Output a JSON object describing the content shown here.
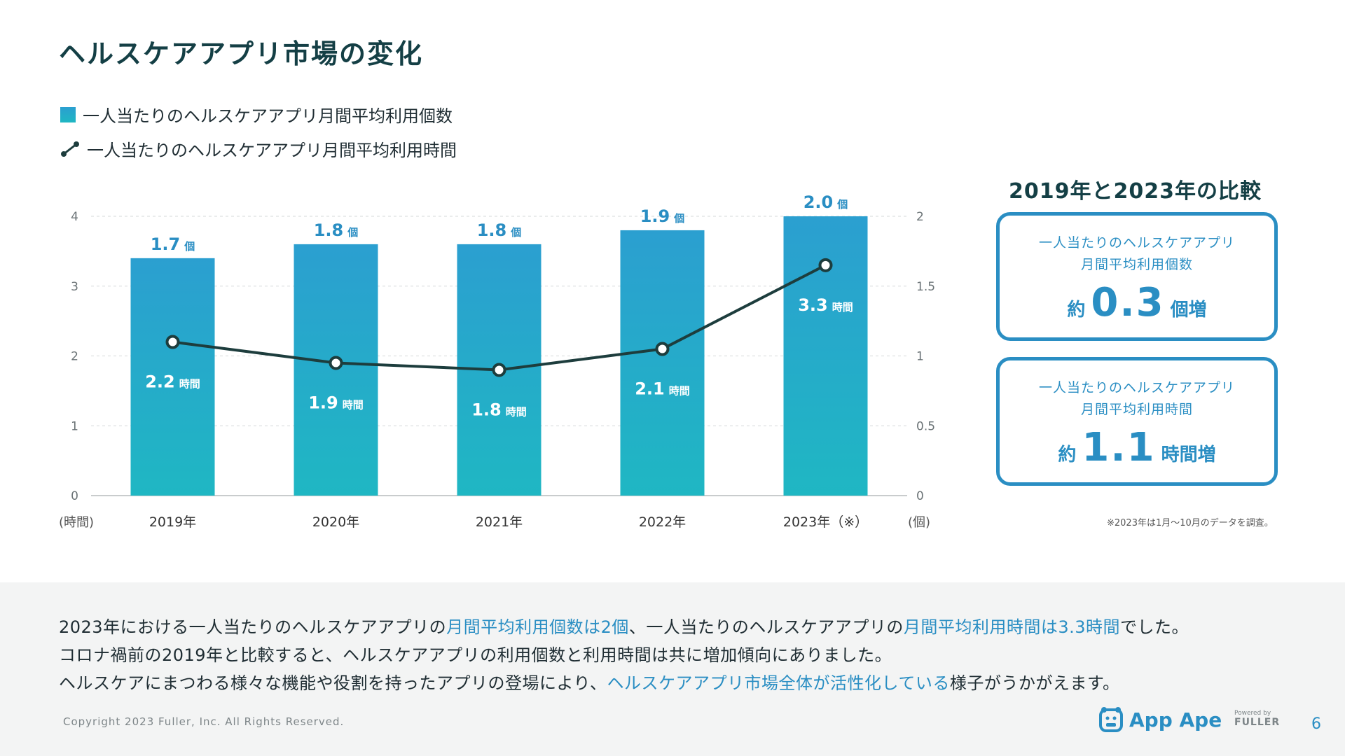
{
  "title": "ヘルスケアアプリ市場の変化",
  "legend": {
    "bar_label": "一人当たりのヘルスケアアプリ月間平均利用個数",
    "line_label": "一人当たりのヘルスケアアプリ月間平均利用時間"
  },
  "colors": {
    "accent": "#2a8ec3",
    "bar_top": "#2b9fd0",
    "bar_bottom": "#1fb7c3",
    "line": "#1d3d3d"
  },
  "chart_data": {
    "type": "bar",
    "categories": [
      "2019年",
      "2020年",
      "2021年",
      "2022年",
      "2023年（※）"
    ],
    "series": [
      {
        "name": "一人当たりのヘルスケアアプリ月間平均利用個数",
        "type": "bar",
        "axis": "right",
        "unit": "個",
        "values": [
          1.7,
          1.8,
          1.8,
          1.9,
          2.0
        ],
        "labels": [
          "1.7",
          "1.8",
          "1.8",
          "1.9",
          "2.0"
        ]
      },
      {
        "name": "一人当たりのヘルスケアアプリ月間平均利用時間",
        "type": "line",
        "axis": "left",
        "unit": "時間",
        "values": [
          2.2,
          1.9,
          1.8,
          2.1,
          3.3
        ],
        "labels": [
          "2.2",
          "1.9",
          "1.8",
          "2.1",
          "3.3"
        ]
      }
    ],
    "left_axis": {
      "label": "(時間)",
      "range": [
        0,
        4
      ],
      "ticks": [
        "0",
        "1",
        "2",
        "3",
        "4"
      ]
    },
    "right_axis": {
      "label": "(個)",
      "range": [
        0,
        2
      ],
      "ticks": [
        "0",
        "0.5",
        "1",
        "1.5",
        "2"
      ]
    }
  },
  "comparison": {
    "title": "2019年と2023年の比較",
    "cards": [
      {
        "label_line1": "一人当たりのヘルスケアアプリ",
        "label_line2": "月間平均利用個数",
        "prefix": "約",
        "value": "0.3",
        "suffix": "個増"
      },
      {
        "label_line1": "一人当たりのヘルスケアアプリ",
        "label_line2": "月間平均利用時間",
        "prefix": "約",
        "value": "1.1",
        "suffix": "時間増"
      }
    ],
    "footnote": "※2023年は1月〜10月のデータを調査。"
  },
  "summary": {
    "line1_a": "2023年における一人当たりのヘルスケアアプリの",
    "line1_b": "月間平均利用個数は2個",
    "line1_c": "、一人当たりのヘルスケアアプリの",
    "line1_d": "月間平均利用時間は3.3時間",
    "line1_e": "でした。",
    "line2": "コロナ禍前の2019年と比較すると、ヘルスケアアプリの利用個数と利用時間は共に増加傾向にありました。",
    "line3_a": "ヘルスケアにまつわる様々な機能や役割を持ったアプリの登場により、",
    "line3_b": "ヘルスケアアプリ市場全体が活性化している",
    "line3_c": "様子がうかがえます。"
  },
  "footer": {
    "copyright": "Copyright 2023 Fuller, Inc. All Rights Reserved.",
    "brand": "App Ape",
    "powered_by": "Powered by",
    "company": "FULLER",
    "page_number": "6"
  }
}
